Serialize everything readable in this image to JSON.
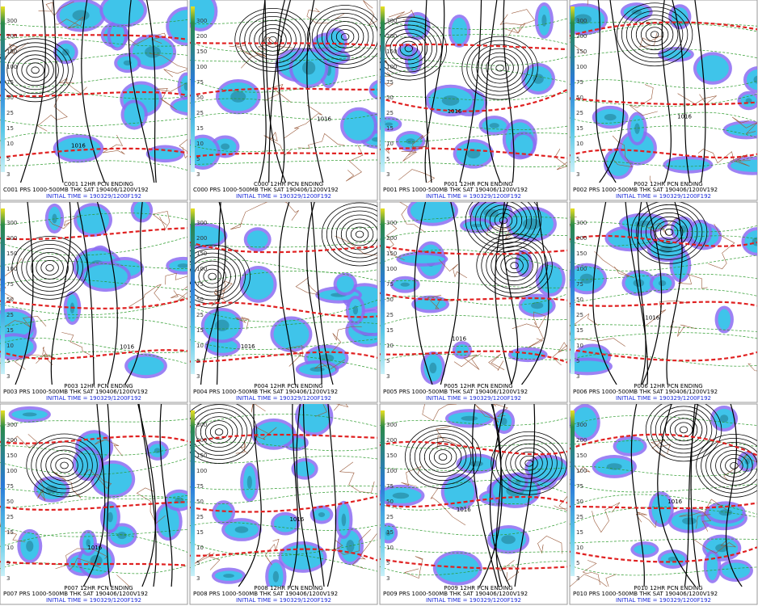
{
  "panels": [
    {
      "id": "C001",
      "header": "C001 12HR PCN ENDING",
      "line1": "C001 PRS 1000-500MB THK SAT 190406/1200V192",
      "line2": "INITIAL TIME = 190329/1200F192"
    },
    {
      "id": "C000",
      "header": "C000 12HR PCN ENDING",
      "line1": "C000 PRS 1000-500MB THK SAT 190406/1200V192",
      "line2": "INITIAL TIME = 190329/1200F192"
    },
    {
      "id": "P001",
      "header": "P001 12HR PCN ENDING",
      "line1": "P001 PRS 1000-500MB THK SAT 190406/1200V192",
      "line2": "INITIAL TIME = 190329/1200F192"
    },
    {
      "id": "P002",
      "header": "P002 12HR PCN ENDING",
      "line1": "P002 PRS 1000-500MB THK SAT 190406/1200V192",
      "line2": "INITIAL TIME = 190329/1200F192"
    },
    {
      "id": "P003",
      "header": "P003 12HR PCN ENDING",
      "line1": "P003 PRS 1000-500MB THK SAT 190406/1200V192",
      "line2": "INITIAL TIME = 190329/1200F192"
    },
    {
      "id": "P004",
      "header": "P004 12HR PCN ENDING",
      "line1": "P004 PRS 1000-500MB THK SAT 190406/1200V192",
      "line2": "INITIAL TIME = 190329/1200F192"
    },
    {
      "id": "P005",
      "header": "P005 12HR PCN ENDING",
      "line1": "P005 PRS 1000-500MB THK SAT 190406/1200V192",
      "line2": "INITIAL TIME = 190329/1200F192"
    },
    {
      "id": "P006",
      "header": "P006 12HR PCN ENDING",
      "line1": "P006 PRS 1000-500MB THK SAT 190406/1200V192",
      "line2": "INITIAL TIME = 190329/1200F192"
    },
    {
      "id": "P007",
      "header": "P007 12HR PCN ENDING",
      "line1": "P007 PRS 1000-500MB THK SAT 190406/1200V192",
      "line2": "INITIAL TIME = 190329/1200F192"
    },
    {
      "id": "P008",
      "header": "P008 12HR PCN ENDING",
      "line1": "P008 PRS 1000-500MB THK SAT 190406/1200V192",
      "line2": "INITIAL TIME = 190329/1200F192"
    },
    {
      "id": "P009",
      "header": "P009 12HR PCN ENDING",
      "line1": "P009 PRS 1000-500MB THK SAT 190406/1200V192",
      "line2": "INITIAL TIME = 190329/1200F192"
    },
    {
      "id": "P010",
      "header": "P010 12HR PCN ENDING",
      "line1": "P010 PRS 1000-500MB THK SAT 190406/1200V192",
      "line2": "INITIAL TIME = 190329/1200F192"
    }
  ],
  "scale_labels": [
    "300",
    "200",
    "150",
    "100",
    "75",
    "50",
    "25",
    "15",
    "10",
    "5",
    "3"
  ],
  "contour_label": "1016"
}
